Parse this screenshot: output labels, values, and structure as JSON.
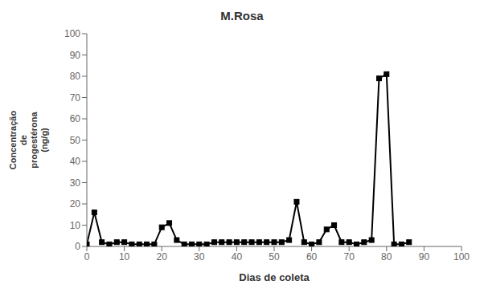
{
  "chart_data": {
    "type": "line",
    "title": "M.Rosa",
    "xlabel": "Dias de coleta",
    "ylabel": "Concentração\nde\nprogestérona\n(ng/g)",
    "x": [
      0,
      2,
      4,
      6,
      8,
      10,
      12,
      14,
      16,
      18,
      20,
      22,
      24,
      26,
      28,
      30,
      32,
      34,
      36,
      38,
      40,
      42,
      44,
      46,
      48,
      50,
      52,
      54,
      56,
      58,
      60,
      62,
      64,
      66,
      68,
      70,
      72,
      74,
      76,
      78,
      80,
      82,
      84,
      86
    ],
    "values": [
      1,
      16,
      2,
      1,
      2,
      2,
      1,
      1,
      1,
      1,
      9,
      11,
      3,
      1,
      1,
      1,
      1,
      2,
      2,
      2,
      2,
      2,
      2,
      2,
      2,
      2,
      2,
      3,
      21,
      2,
      1,
      2,
      8,
      10,
      2,
      2,
      1,
      2,
      3,
      79,
      81,
      1,
      1,
      2
    ],
    "color": "#000000",
    "marker": "square",
    "line_style": "solid",
    "xlim": [
      0,
      100
    ],
    "ylim": [
      0,
      100
    ],
    "xticks": [
      0,
      10,
      20,
      30,
      40,
      50,
      60,
      70,
      80,
      90,
      100
    ],
    "yticks": [
      0,
      10,
      20,
      30,
      40,
      50,
      60,
      70,
      80,
      90,
      100
    ],
    "grid": false
  }
}
